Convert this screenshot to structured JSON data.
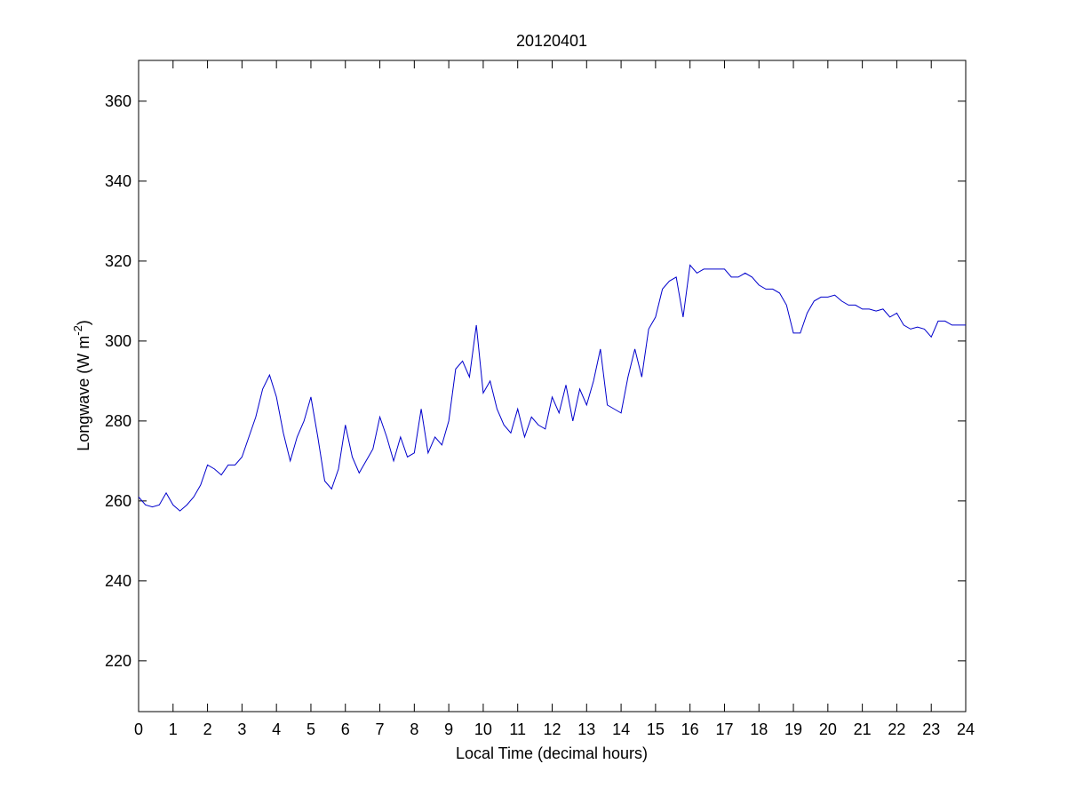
{
  "chart_data": {
    "type": "line",
    "title": "20120401",
    "xlabel": "Local Time (decimal hours)",
    "ylabel": [
      "Longwave (W m",
      "-2",
      ")"
    ],
    "xlim": [
      0,
      24
    ],
    "ylim": [
      207.3,
      370.2
    ],
    "xticks": [
      0,
      1,
      2,
      3,
      4,
      5,
      6,
      7,
      8,
      9,
      10,
      11,
      12,
      13,
      14,
      15,
      16,
      17,
      18,
      19,
      20,
      21,
      22,
      23,
      24
    ],
    "yticks": [
      220,
      240,
      260,
      280,
      300,
      320,
      340,
      360
    ],
    "grid": false,
    "x": [
      0,
      0.2,
      0.4,
      0.6,
      0.8,
      1,
      1.2,
      1.4,
      1.6,
      1.8,
      2,
      2.2,
      2.4,
      2.6,
      2.8,
      3,
      3.2,
      3.4,
      3.6,
      3.8,
      4,
      4.2,
      4.4,
      4.6,
      4.8,
      5,
      5.2,
      5.4,
      5.6,
      5.8,
      6,
      6.2,
      6.4,
      6.6,
      6.8,
      7,
      7.2,
      7.4,
      7.6,
      7.8,
      8,
      8.2,
      8.4,
      8.6,
      8.8,
      9,
      9.2,
      9.4,
      9.6,
      9.8,
      10,
      10.2,
      10.4,
      10.6,
      10.8,
      11,
      11.2,
      11.4,
      11.6,
      11.8,
      12,
      12.2,
      12.4,
      12.6,
      12.8,
      13,
      13.2,
      13.4,
      13.6,
      13.8,
      14,
      14.2,
      14.4,
      14.6,
      14.8,
      15,
      15.2,
      15.4,
      15.6,
      15.8,
      16,
      16.2,
      16.4,
      16.6,
      16.8,
      17,
      17.2,
      17.4,
      17.6,
      17.8,
      18,
      18.2,
      18.4,
      18.6,
      18.8,
      19,
      19.2,
      19.4,
      19.6,
      19.8,
      20,
      20.2,
      20.4,
      20.6,
      20.8,
      21,
      21.2,
      21.4,
      21.6,
      21.8,
      22,
      22.2,
      22.4,
      22.6,
      22.8,
      23,
      23.2,
      23.4,
      23.6,
      23.8,
      24
    ],
    "series": [
      {
        "name": "Longwave",
        "color": "#0000cc",
        "values": [
          261,
          259,
          258.5,
          259,
          262,
          259,
          257.5,
          259,
          261,
          264,
          269,
          268,
          266.5,
          269,
          269,
          271,
          276,
          281,
          288,
          291.5,
          286,
          277,
          270,
          276,
          280,
          286,
          276,
          265,
          263,
          268,
          279,
          271,
          267,
          270,
          273,
          281,
          276,
          270,
          276,
          271,
          272,
          283,
          272,
          276,
          274,
          280,
          293,
          295,
          291,
          304,
          287,
          290,
          283,
          279,
          277,
          283,
          276,
          281,
          279,
          278,
          286,
          282,
          289,
          280,
          288,
          284,
          290,
          298,
          284,
          283,
          282,
          291,
          298,
          291,
          303,
          306,
          313,
          315,
          316,
          306,
          319,
          317,
          318,
          318,
          318,
          318,
          316,
          316,
          317,
          316,
          314,
          313,
          313,
          312,
          309,
          302,
          302,
          307,
          310,
          311,
          311,
          311.5,
          310,
          309,
          309,
          308,
          308,
          307.5,
          308,
          306,
          307,
          304,
          303,
          303.5,
          303,
          301,
          305,
          305,
          304,
          304,
          304
        ]
      }
    ]
  }
}
